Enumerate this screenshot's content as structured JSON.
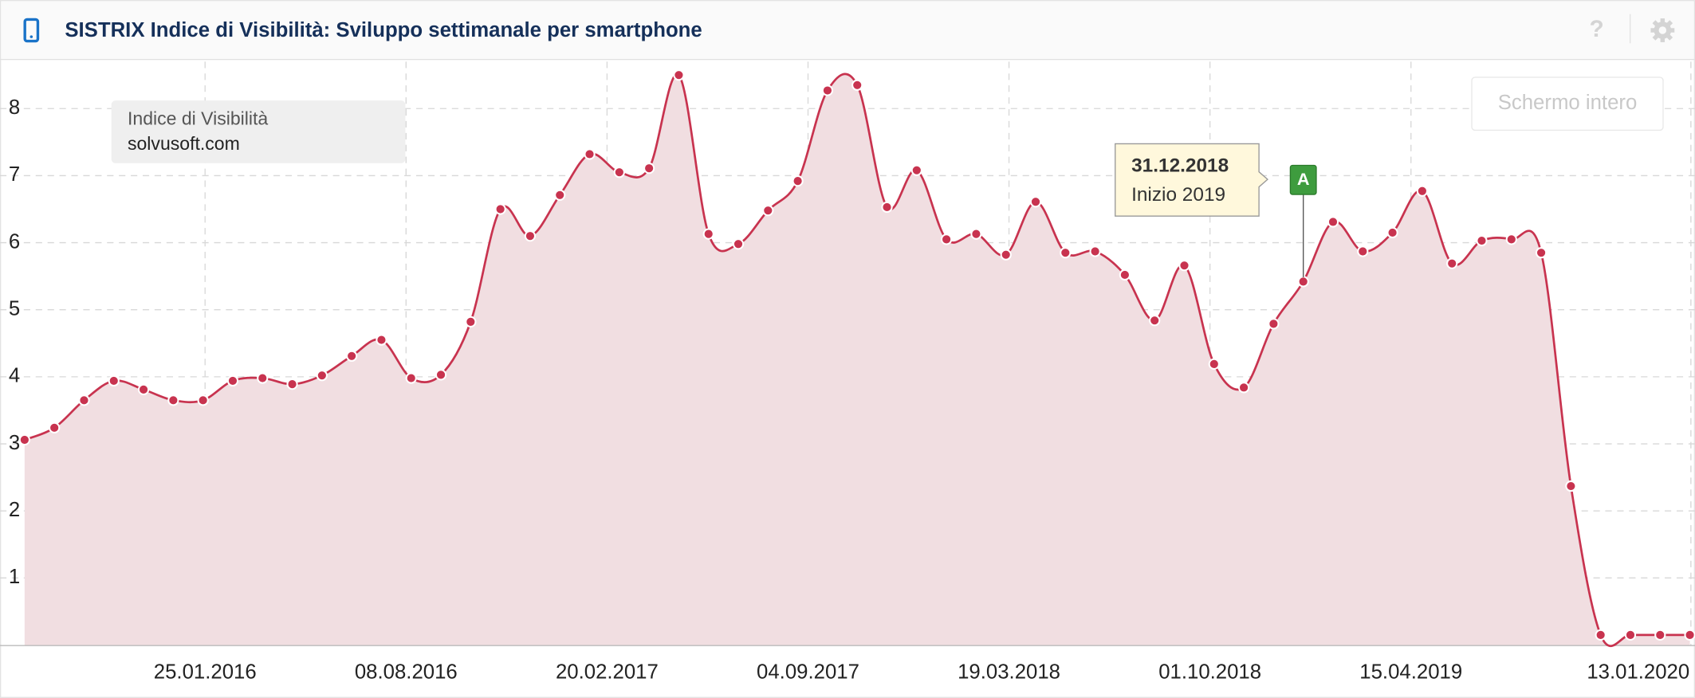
{
  "header": {
    "title": "SISTRIX Indice di Visibilità: Sviluppo settimanale per smartphone",
    "help": "?",
    "fullscreen_button": "Schermo intero"
  },
  "chart_data": {
    "type": "area",
    "legend": {
      "title": "Indice di Visibilità"
    },
    "x": [
      "2015-08-02",
      "2015-08-31",
      "2015-09-29",
      "2015-10-28",
      "2015-11-26",
      "2015-12-25",
      "2016-01-23",
      "2016-02-21",
      "2016-03-21",
      "2016-04-19",
      "2016-05-18",
      "2016-06-16",
      "2016-07-15",
      "2016-08-13",
      "2016-09-11",
      "2016-10-10",
      "2016-11-08",
      "2016-12-07",
      "2017-01-05",
      "2017-02-03",
      "2017-03-04",
      "2017-04-02",
      "2017-05-01",
      "2017-05-30",
      "2017-06-28",
      "2017-07-27",
      "2017-08-25",
      "2017-09-23",
      "2017-10-22",
      "2017-11-20",
      "2017-12-19",
      "2018-01-17",
      "2018-02-15",
      "2018-03-16",
      "2018-04-14",
      "2018-05-13",
      "2018-06-11",
      "2018-07-10",
      "2018-08-08",
      "2018-09-06",
      "2018-10-05",
      "2018-11-03",
      "2018-12-02",
      "2018-12-31",
      "2019-01-29",
      "2019-02-27",
      "2019-03-28",
      "2019-04-26",
      "2019-05-25",
      "2019-06-23",
      "2019-07-22",
      "2019-08-20",
      "2019-09-18",
      "2019-10-17",
      "2019-11-15",
      "2019-12-14",
      "2020-01-12"
    ],
    "series": [
      {
        "name": "solvusoft.com",
        "color": "#c8334f",
        "fill": "#f1dee1",
        "values": [
          3.06,
          3.24,
          3.65,
          3.94,
          3.81,
          3.65,
          3.65,
          3.94,
          3.98,
          3.89,
          4.02,
          4.31,
          4.55,
          3.98,
          4.03,
          4.82,
          6.5,
          6.1,
          6.71,
          7.32,
          7.05,
          7.11,
          8.5,
          6.13,
          5.98,
          6.48,
          6.92,
          8.27,
          8.35,
          6.53,
          7.08,
          6.05,
          6.13,
          5.82,
          6.61,
          5.85,
          5.87,
          5.52,
          4.84,
          5.66,
          4.19,
          3.84,
          4.79,
          5.42,
          6.31,
          5.87,
          6.15,
          6.77,
          5.69,
          6.03,
          6.05,
          5.85,
          2.37,
          0.15,
          0.15,
          0.15,
          0.15
        ]
      }
    ],
    "xlim": [
      "2015-07-09",
      "2020-01-17"
    ],
    "xticks": [
      {
        "value": "2016-01-25",
        "label": "25.01.2016"
      },
      {
        "value": "2016-08-08",
        "label": "08.08.2016"
      },
      {
        "value": "2017-02-20",
        "label": "20.02.2017"
      },
      {
        "value": "2017-09-04",
        "label": "04.09.2017"
      },
      {
        "value": "2018-03-19",
        "label": "19.03.2018"
      },
      {
        "value": "2018-10-01",
        "label": "01.10.2018"
      },
      {
        "value": "2019-04-15",
        "label": "15.04.2019"
      },
      {
        "value": "2020-01-13",
        "label": "13.01.2020"
      }
    ],
    "ylim": [
      0,
      8.7
    ],
    "yticks": [
      1,
      2,
      3,
      4,
      5,
      6,
      7,
      8
    ],
    "grid": true,
    "annotations": [
      {
        "x": "2018-12-31",
        "marker": "A",
        "title": "31.12.2018",
        "text": "Inizio 2019"
      }
    ]
  }
}
